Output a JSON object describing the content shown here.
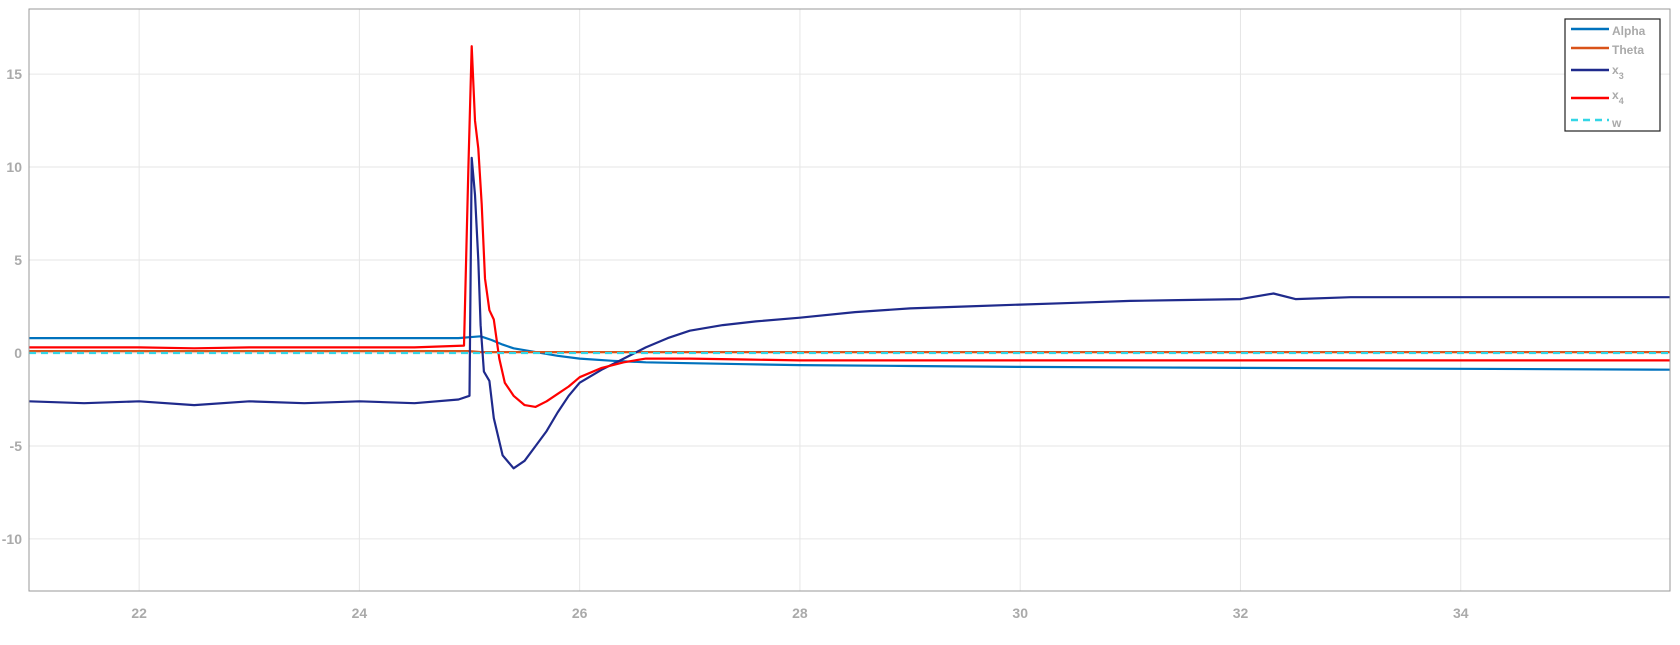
{
  "chart_data": {
    "type": "line",
    "title": "",
    "xlabel": "",
    "ylabel": "",
    "xlim": [
      21,
      35.9
    ],
    "ylim": [
      -12.8,
      18.5
    ],
    "xticks": [
      22,
      24,
      26,
      28,
      30,
      32,
      34
    ],
    "yticks": [
      -10,
      -5,
      0,
      5,
      10,
      15
    ],
    "xtick_labels": [
      "22",
      "24",
      "26",
      "28",
      "30",
      "32",
      "34"
    ],
    "ytick_labels": [
      "-10",
      "-5",
      "0",
      "5",
      "10",
      "15"
    ],
    "grid": true,
    "legend_position": "top-right",
    "series": [
      {
        "name": "Alpha",
        "color": "#0072BD",
        "style": "solid",
        "x": [
          21.0,
          24.9,
          25.0,
          25.1,
          25.2,
          25.3,
          25.4,
          25.6,
          25.8,
          26.0,
          26.3,
          26.6,
          27.0,
          27.5,
          28.0,
          29.0,
          30.0,
          32.0,
          34.0,
          35.9
        ],
        "y": [
          0.8,
          0.8,
          0.85,
          0.9,
          0.7,
          0.45,
          0.25,
          0.05,
          -0.15,
          -0.3,
          -0.42,
          -0.5,
          -0.55,
          -0.6,
          -0.65,
          -0.7,
          -0.75,
          -0.8,
          -0.85,
          -0.9
        ]
      },
      {
        "name": "Theta",
        "color": "#D95319",
        "style": "solid",
        "x": [
          21.0,
          24.9,
          25.0,
          25.1,
          25.3,
          25.6,
          26.0,
          28.0,
          30.0,
          32.0,
          34.0,
          35.9
        ],
        "y": [
          0.1,
          0.1,
          0.1,
          0.05,
          0.05,
          0.05,
          0.05,
          0.05,
          0.05,
          0.05,
          0.05,
          0.05
        ]
      },
      {
        "name": "x3",
        "color": "#1F2A8C",
        "style": "solid",
        "x": [
          21.0,
          21.5,
          22.0,
          22.5,
          23.0,
          23.5,
          24.0,
          24.5,
          24.9,
          25.0,
          25.02,
          25.05,
          25.08,
          25.1,
          25.13,
          25.18,
          25.22,
          25.3,
          25.4,
          25.5,
          25.6,
          25.7,
          25.8,
          25.9,
          26.0,
          26.2,
          26.4,
          26.6,
          26.8,
          27.0,
          27.3,
          27.6,
          28.0,
          28.5,
          29.0,
          29.5,
          30.0,
          30.5,
          31.0,
          31.5,
          32.0,
          32.3,
          32.5,
          33.0,
          33.5,
          34.0,
          34.5,
          35.0,
          35.5,
          35.9
        ],
        "y": [
          -2.6,
          -2.7,
          -2.6,
          -2.8,
          -2.6,
          -2.7,
          -2.6,
          -2.7,
          -2.5,
          -2.3,
          10.5,
          8.5,
          5.0,
          1.5,
          -1.0,
          -1.5,
          -3.5,
          -5.5,
          -6.2,
          -5.8,
          -5.0,
          -4.2,
          -3.2,
          -2.3,
          -1.6,
          -0.9,
          -0.3,
          0.3,
          0.8,
          1.2,
          1.5,
          1.7,
          1.9,
          2.2,
          2.4,
          2.5,
          2.6,
          2.7,
          2.8,
          2.85,
          2.9,
          3.2,
          2.9,
          3.0,
          3.0,
          3.0,
          3.0,
          3.0,
          3.0,
          3.0
        ]
      },
      {
        "name": "x4",
        "color": "#FF0000",
        "style": "solid",
        "x": [
          21.0,
          21.5,
          22.0,
          22.5,
          23.0,
          23.5,
          24.0,
          24.5,
          24.95,
          24.99,
          25.02,
          25.05,
          25.08,
          25.11,
          25.14,
          25.18,
          25.22,
          25.27,
          25.32,
          25.4,
          25.5,
          25.6,
          25.7,
          25.8,
          25.9,
          26.0,
          26.2,
          26.4,
          26.6,
          26.8,
          27.0,
          27.5,
          28.0,
          29.0,
          30.0,
          31.0,
          32.0,
          33.0,
          34.0,
          35.0,
          35.9
        ],
        "y": [
          0.3,
          0.3,
          0.3,
          0.25,
          0.3,
          0.3,
          0.3,
          0.3,
          0.4,
          10.0,
          16.5,
          12.5,
          11.0,
          8.0,
          4.0,
          2.3,
          1.8,
          -0.3,
          -1.6,
          -2.3,
          -2.8,
          -2.9,
          -2.6,
          -2.2,
          -1.8,
          -1.3,
          -0.8,
          -0.5,
          -0.3,
          -0.3,
          -0.3,
          -0.35,
          -0.4,
          -0.4,
          -0.4,
          -0.4,
          -0.4,
          -0.4,
          -0.4,
          -0.4,
          -0.4
        ]
      },
      {
        "name": "w",
        "color": "#33D6E6",
        "style": "dashed",
        "x": [
          21.0,
          35.9
        ],
        "y": [
          0.0,
          0.0
        ]
      }
    ]
  }
}
